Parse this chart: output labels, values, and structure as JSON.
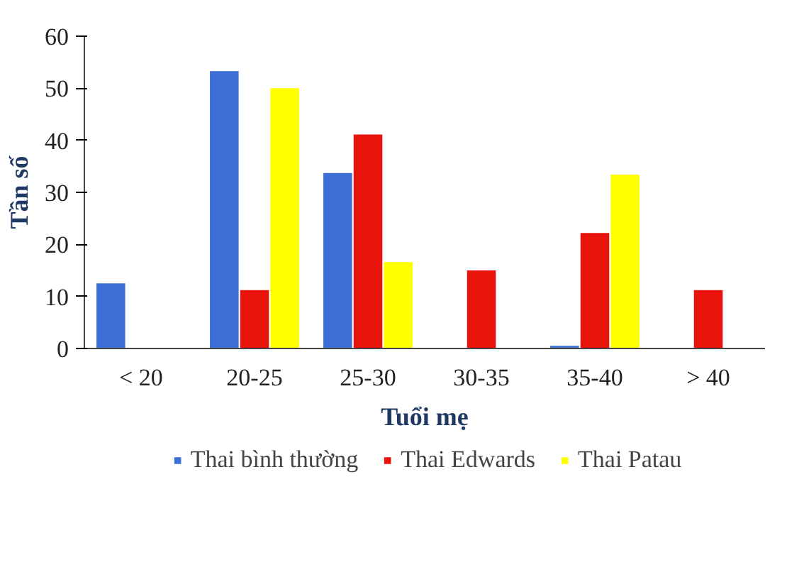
{
  "chart_data": {
    "type": "bar",
    "xlabel": "Tuổi mẹ",
    "ylabel": "Tần số",
    "categories": [
      "< 20",
      "20-25",
      "25-30",
      "30-35",
      "35-40",
      "> 40"
    ],
    "series": [
      {
        "name": "Thai bình thường",
        "color": "#3c6fd6",
        "values": [
          12.5,
          53.3,
          33.7,
          null,
          0.5,
          null
        ]
      },
      {
        "name": "Thai Edwards",
        "color": "#e8140c",
        "values": [
          null,
          11.2,
          41.1,
          15,
          22.2,
          11.2
        ]
      },
      {
        "name": "Thai Patau",
        "color": "#ffff00",
        "values": [
          null,
          50,
          16.6,
          null,
          33.4,
          null
        ]
      }
    ],
    "ylim": [
      0,
      60
    ],
    "yticks": [
      0,
      10,
      20,
      30,
      40,
      50,
      60
    ],
    "grid": false,
    "legend": "bottom"
  }
}
